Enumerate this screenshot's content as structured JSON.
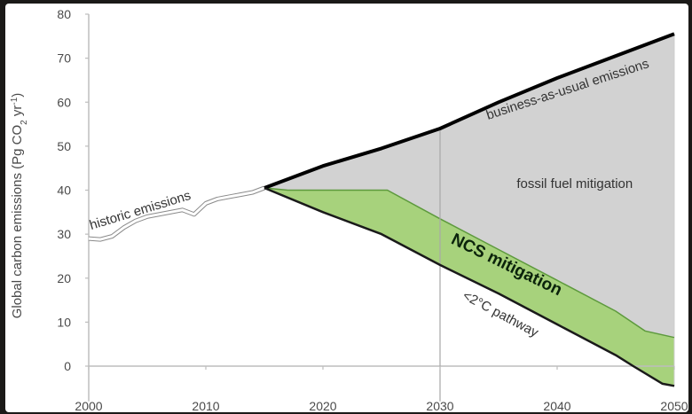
{
  "chart_data": {
    "type": "area",
    "title": "",
    "ylabel": "Global carbon emissions (Pg CO2 yr⁻¹)",
    "ylabel_parts": {
      "prefix": "Global carbon emissions (Pg CO",
      "sub": "2",
      "mid": " yr",
      "sup": "-1",
      "suffix": ")"
    },
    "xlabel": "",
    "xlim": [
      2000,
      2050
    ],
    "ylim": [
      -5,
      80
    ],
    "xticks": [
      "2000",
      "2010",
      "2020",
      "2030",
      "2040",
      "2050"
    ],
    "yticks": [
      "0",
      "10",
      "20",
      "30",
      "40",
      "50",
      "60",
      "70",
      "80"
    ],
    "grid": false,
    "reference_lines": {
      "y_zero": 0,
      "x_vertical": 2030
    },
    "series": [
      {
        "name": "historic emissions",
        "color": "#ffffff",
        "points": [
          [
            2000,
            29
          ],
          [
            2001,
            28.8
          ],
          [
            2002,
            29.5
          ],
          [
            2003,
            31.5
          ],
          [
            2004,
            33
          ],
          [
            2005,
            34
          ],
          [
            2006,
            34.5
          ],
          [
            2007,
            35
          ],
          [
            2008,
            35.5
          ],
          [
            2009,
            34.5
          ],
          [
            2010,
            37
          ],
          [
            2011,
            38
          ],
          [
            2012,
            38.5
          ],
          [
            2013,
            39
          ],
          [
            2014,
            39.5
          ],
          [
            2015,
            40.5
          ]
        ]
      },
      {
        "name": "business-as-usual emissions",
        "color": "#000000",
        "points": [
          [
            2015,
            40.5
          ],
          [
            2020,
            45.5
          ],
          [
            2025,
            49.5
          ],
          [
            2030,
            54
          ],
          [
            2035,
            60
          ],
          [
            2040,
            65.5
          ],
          [
            2045,
            70.5
          ],
          [
            2050,
            75.5
          ]
        ]
      },
      {
        "name": "<2°C pathway",
        "color": "#1a1a1a",
        "points": [
          [
            2015,
            40.5
          ],
          [
            2020,
            35
          ],
          [
            2025,
            30
          ],
          [
            2030,
            23
          ],
          [
            2035,
            16.5
          ],
          [
            2040,
            9.5
          ],
          [
            2045,
            2.5
          ],
          [
            2046.5,
            0
          ],
          [
            2049,
            -4
          ],
          [
            2050,
            -4.5
          ]
        ]
      }
    ],
    "areas": [
      {
        "name": "fossil fuel mitigation",
        "color": "#d2d2d2",
        "upper_series": "business-as-usual emissions",
        "lower_points": [
          [
            2015,
            40.5
          ],
          [
            2017,
            40
          ],
          [
            2021,
            40
          ],
          [
            2025.5,
            40
          ],
          [
            2030,
            33.5
          ],
          [
            2035,
            26.5
          ],
          [
            2040,
            19.5
          ],
          [
            2045,
            12.5
          ],
          [
            2047.5,
            8
          ],
          [
            2050,
            6.5
          ]
        ]
      },
      {
        "name": "NCS mitigation",
        "color": "#a7d27c",
        "upper_points": [
          [
            2015,
            40.5
          ],
          [
            2017,
            40
          ],
          [
            2021,
            40
          ],
          [
            2025.5,
            40
          ],
          [
            2030,
            33.5
          ],
          [
            2035,
            26.5
          ],
          [
            2040,
            19.5
          ],
          [
            2045,
            12.5
          ],
          [
            2047.5,
            8
          ],
          [
            2050,
            6.5
          ]
        ],
        "lower_series": "<2°C pathway"
      }
    ],
    "annotations": [
      {
        "text": "historic emissions",
        "x": 2004.5,
        "y": 34.5,
        "rotate_deg": -17,
        "style": "normal"
      },
      {
        "text": "business-as-usual emissions",
        "x": 2041,
        "y": 62,
        "rotate_deg": -18,
        "style": "normal"
      },
      {
        "text": "fossil fuel mitigation",
        "x": 2041.5,
        "y": 40.5,
        "rotate_deg": 0,
        "style": "normal"
      },
      {
        "text": "NCS mitigation",
        "x": 2035.5,
        "y": 22,
        "rotate_deg": 26,
        "style": "bold"
      },
      {
        "text": "<2°C pathway",
        "x": 2035,
        "y": 11,
        "rotate_deg": 28,
        "style": "normal"
      }
    ],
    "colors": {
      "page_background": "#1b1a18",
      "plot_background": "#ffffff",
      "axis": "#bdbdbd",
      "tick_text": "#4a4a4a",
      "annotation_text": "#333333",
      "ncs_text": "#0b230b",
      "historic_line_shadow": "#8a8a8a",
      "area_edge": "#cfcfcf",
      "ncs_upper_edge": "#5d9a3c"
    }
  }
}
